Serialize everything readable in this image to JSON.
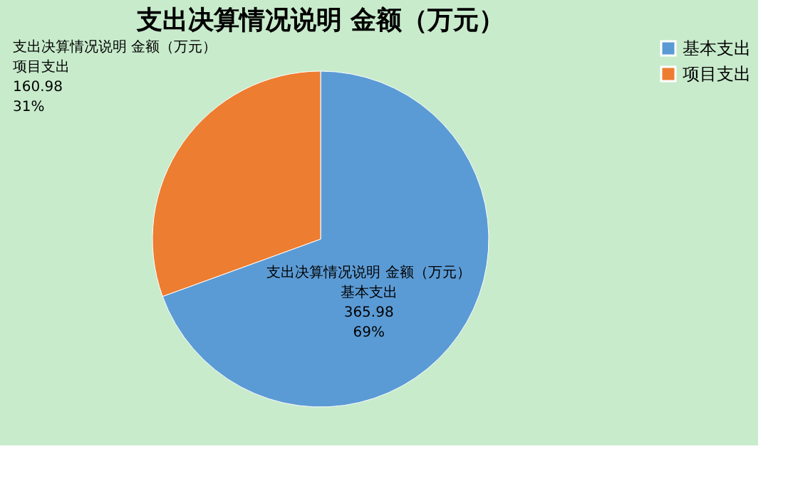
{
  "chart_data": {
    "type": "pie",
    "title": "支出决算情况说明 金额（万元）",
    "categories": [
      "基本支出",
      "项目支出"
    ],
    "values": [
      365.98,
      160.98
    ],
    "colors": [
      "#5b9bd5",
      "#ed7d31"
    ],
    "data_labels": true,
    "annotations": [
      "支出决算情况说明 金额（万元）",
      "69%",
      "支出决算情况说明 金额（万元）",
      "31%"
    ],
    "legend": "right"
  }
}
